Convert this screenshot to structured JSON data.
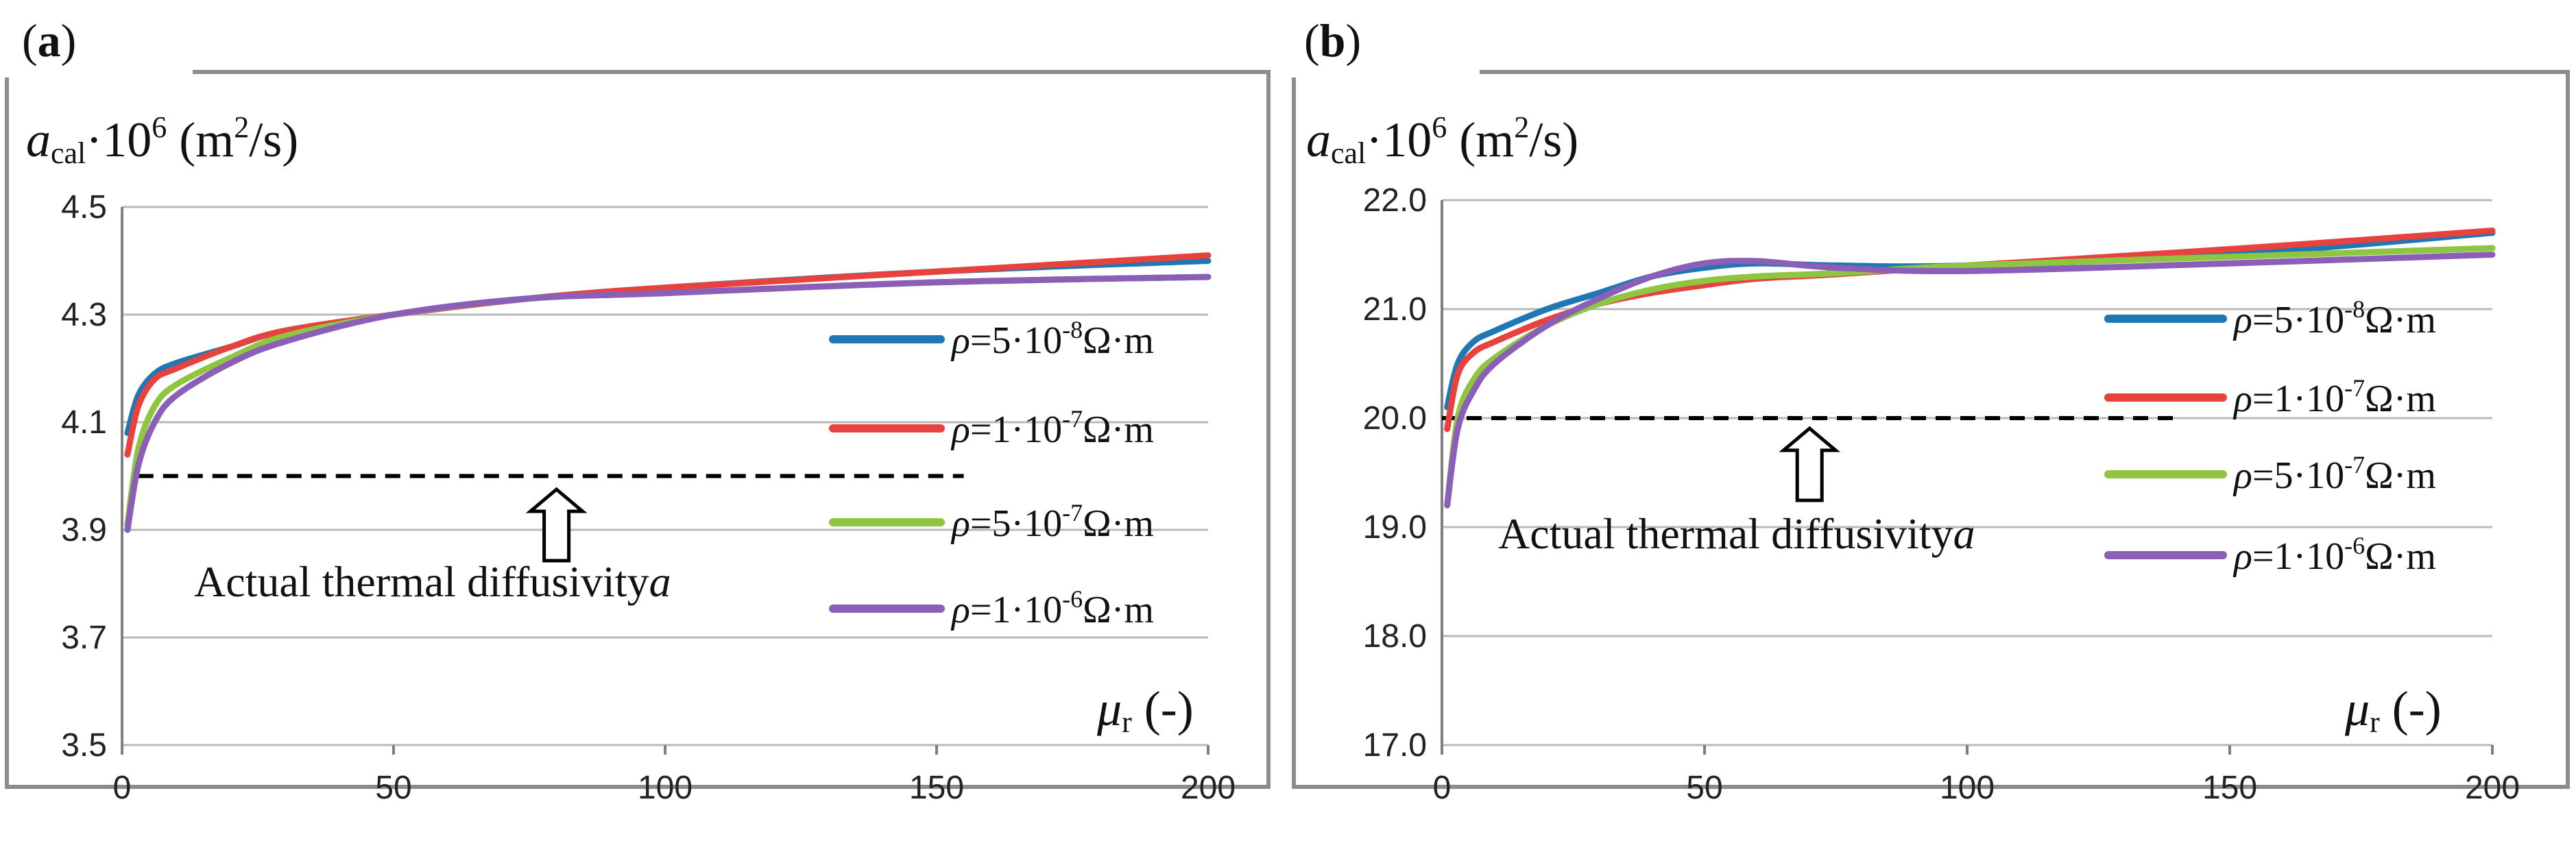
{
  "chart_data": [
    {
      "type": "line",
      "panel_label": "a",
      "ylabel": {
        "symbol": "a",
        "sub": "cal",
        "rest": "·10",
        "sup": "6",
        "unit_pre": " (m",
        "unit_sup": "2",
        "unit_post": "/s)"
      },
      "xlabel": {
        "symbol": "μ",
        "sub": "r",
        "rest": " (-)"
      },
      "ylim": [
        3.5,
        4.5
      ],
      "xlim": [
        0,
        200
      ],
      "yticks": [
        "3.5",
        "3.7",
        "3.9",
        "4.1",
        "4.3",
        "4.5"
      ],
      "xticks": [
        "0",
        "50",
        "100",
        "150",
        "200"
      ],
      "grid": true,
      "legend_placement": "right",
      "reference_line": {
        "y": 4.0,
        "x_start": 3,
        "x_end": 155,
        "style": "dashed",
        "color": "#000000"
      },
      "annotation": {
        "text": "Actual thermal diffusivity",
        "symbol": "a",
        "arrow_x": 80
      },
      "series": [
        {
          "name": "ρ=5·10-8Ω·m",
          "rho": "ρ",
          "eq": "=5·10",
          "exp": "-8",
          "unit": "Ω·m",
          "color": "#1f77b4",
          "x": [
            1,
            3,
            6,
            10,
            20,
            30,
            50,
            75,
            100,
            150,
            200
          ],
          "y": [
            4.08,
            4.15,
            4.19,
            4.21,
            4.24,
            4.27,
            4.3,
            4.33,
            4.35,
            4.38,
            4.4
          ]
        },
        {
          "name": "ρ=1·10-7Ω·m",
          "rho": "ρ",
          "eq": "=1·10",
          "exp": "-7",
          "unit": "Ω·m",
          "color": "#e8423f",
          "x": [
            1,
            3,
            6,
            10,
            20,
            30,
            50,
            75,
            100,
            150,
            200
          ],
          "y": [
            4.04,
            4.13,
            4.18,
            4.2,
            4.24,
            4.27,
            4.3,
            4.33,
            4.35,
            4.38,
            4.41
          ]
        },
        {
          "name": "ρ=5·10-7Ω·m",
          "rho": "ρ",
          "eq": "=5·10",
          "exp": "-7",
          "unit": "Ω·m",
          "color": "#8ec641",
          "x": [
            1,
            3,
            6,
            10,
            20,
            30,
            50,
            75,
            100,
            150,
            200
          ],
          "y": [
            3.91,
            4.05,
            4.13,
            4.17,
            4.22,
            4.26,
            4.3,
            4.33,
            4.34,
            4.36,
            4.37
          ]
        },
        {
          "name": "ρ=1·10-6Ω·m",
          "rho": "ρ",
          "eq": "=1·10",
          "exp": "-6",
          "unit": "Ω·m",
          "color": "#8b5fb8",
          "x": [
            1,
            3,
            6,
            10,
            20,
            30,
            50,
            75,
            100,
            150,
            200
          ],
          "y": [
            3.9,
            4.02,
            4.1,
            4.15,
            4.21,
            4.25,
            4.3,
            4.33,
            4.34,
            4.36,
            4.37
          ]
        }
      ]
    },
    {
      "type": "line",
      "panel_label": "b",
      "ylabel": {
        "symbol": "a",
        "sub": "cal",
        "rest": "·10",
        "sup": "6",
        "unit_pre": " (m",
        "unit_sup": "2",
        "unit_post": "/s)"
      },
      "xlabel": {
        "symbol": "μ",
        "sub": "r",
        "rest": " (-)"
      },
      "ylim": [
        17.0,
        22.0
      ],
      "xlim": [
        0,
        200
      ],
      "yticks": [
        "17.0",
        "18.0",
        "19.0",
        "20.0",
        "21.0",
        "22.0"
      ],
      "xticks": [
        "0",
        "50",
        "100",
        "150",
        "200"
      ],
      "grid": true,
      "legend_placement": "right",
      "reference_line": {
        "y": 20.0,
        "x_start": 0,
        "x_end": 140,
        "style": "dashed",
        "color": "#000000"
      },
      "annotation": {
        "text": "Actual thermal diffusivity",
        "symbol": "a",
        "arrow_x": 70
      },
      "series": [
        {
          "name": "ρ=5·10-8Ω·m",
          "rho": "ρ",
          "eq": "=5·10",
          "exp": "-8",
          "unit": "Ω·m",
          "color": "#1f77b4",
          "x": [
            1,
            3,
            6,
            10,
            20,
            30,
            40,
            50,
            60,
            75,
            100,
            150,
            200
          ],
          "y": [
            20.1,
            20.5,
            20.7,
            20.8,
            21.0,
            21.15,
            21.3,
            21.38,
            21.42,
            21.4,
            21.4,
            21.5,
            21.7
          ]
        },
        {
          "name": "ρ=1·10-7Ω·m",
          "rho": "ρ",
          "eq": "=1·10",
          "exp": "-7",
          "unit": "Ω·m",
          "color": "#e8423f",
          "x": [
            1,
            3,
            6,
            10,
            20,
            30,
            40,
            50,
            60,
            75,
            100,
            150,
            200
          ],
          "y": [
            19.9,
            20.4,
            20.6,
            20.7,
            20.9,
            21.05,
            21.15,
            21.22,
            21.28,
            21.32,
            21.4,
            21.55,
            21.72
          ]
        },
        {
          "name": "ρ=5·10-7Ω·m",
          "rho": "ρ",
          "eq": "=5·10",
          "exp": "-7",
          "unit": "Ω·m",
          "color": "#8ec641",
          "x": [
            1,
            3,
            6,
            10,
            20,
            30,
            40,
            50,
            60,
            75,
            100,
            150,
            200
          ],
          "y": [
            19.2,
            20.0,
            20.35,
            20.55,
            20.85,
            21.05,
            21.18,
            21.26,
            21.3,
            21.33,
            21.4,
            21.48,
            21.56
          ]
        },
        {
          "name": "ρ=1·10-6Ω·m",
          "rho": "ρ",
          "eq": "=1·10",
          "exp": "-6",
          "unit": "Ω·m",
          "color": "#8b5fb8",
          "x": [
            1,
            3,
            6,
            10,
            20,
            30,
            40,
            50,
            60,
            75,
            100,
            150,
            200
          ],
          "y": [
            19.2,
            19.9,
            20.25,
            20.5,
            20.85,
            21.1,
            21.3,
            21.42,
            21.44,
            21.38,
            21.35,
            21.42,
            21.5
          ]
        }
      ]
    }
  ]
}
